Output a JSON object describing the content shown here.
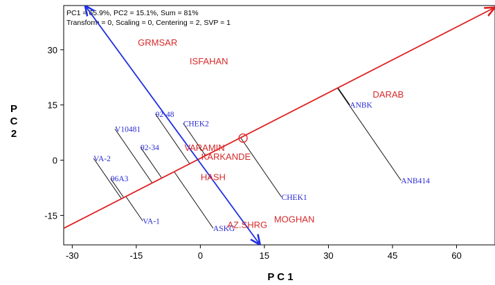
{
  "chart_data": {
    "type": "scatter",
    "title": "",
    "header": [
      "PC1 = 65.9%, PC2 = 15.1%, Sum = 81%",
      "Transform = 0, Scaling = 0, Centering = 2, SVP = 1"
    ],
    "xlabel": "P C 1",
    "ylabel": "P C 2",
    "xlim": [
      -32,
      69
    ],
    "ylim": [
      -23,
      42
    ],
    "xticks": [
      -30,
      -15,
      0,
      15,
      30,
      45,
      60
    ],
    "yticks": [
      -15,
      0,
      15,
      30
    ],
    "grid": false,
    "environments": [
      {
        "name": "GRMSAR",
        "x": -10,
        "y": 32
      },
      {
        "name": "ISFAHAN",
        "x": 2,
        "y": 27
      },
      {
        "name": "DARAB",
        "x": 44,
        "y": 18
      },
      {
        "name": "VARAMIN",
        "x": 1,
        "y": 3.5
      },
      {
        "name": "KARKANDE",
        "x": 6,
        "y": 1
      },
      {
        "name": "HASH",
        "x": 3,
        "y": -4.5
      },
      {
        "name": "MOGHAN",
        "x": 22,
        "y": -16
      },
      {
        "name": "AZ.SHRG",
        "x": 11,
        "y": -17.5
      }
    ],
    "genotypes": [
      {
        "name": "92-48",
        "x": -10.5,
        "y": 12.5
      },
      {
        "name": "CHEK2",
        "x": -4,
        "y": 10
      },
      {
        "name": "V10481",
        "x": -20,
        "y": 8.5
      },
      {
        "name": "92-34",
        "x": -14,
        "y": 3.5
      },
      {
        "name": "VA-2",
        "x": -25,
        "y": 0.5
      },
      {
        "name": "96A3",
        "x": -21,
        "y": -5
      },
      {
        "name": "VA-1",
        "x": -13.5,
        "y": -16.5
      },
      {
        "name": "ASKG",
        "x": 3,
        "y": -18.5
      },
      {
        "name": "CHEK1",
        "x": 19,
        "y": -10
      },
      {
        "name": "ANBK",
        "x": 35,
        "y": 15
      },
      {
        "name": "ANB414",
        "x": 47,
        "y": -5.5
      }
    ],
    "ate_axis": {
      "from": [
        -32,
        -18.5
      ],
      "to": [
        69,
        41.5
      ]
    },
    "ate_ordinate": {
      "from": [
        -27,
        42
      ],
      "to": [
        14,
        -23
      ]
    },
    "average_environment": {
      "x": 10,
      "y": 6
    }
  }
}
